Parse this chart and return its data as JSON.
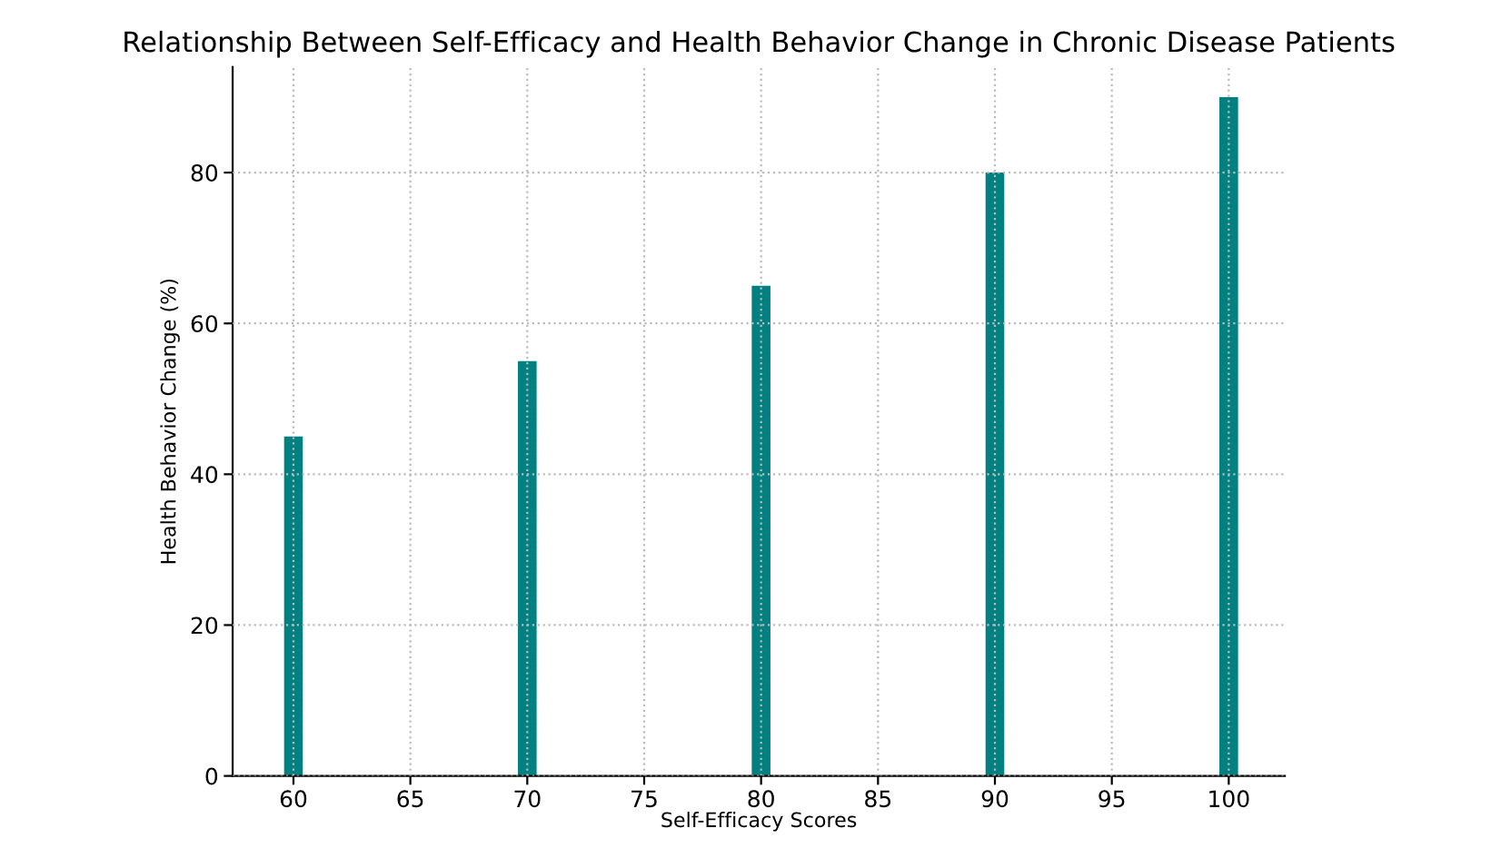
{
  "chart_data": {
    "type": "bar",
    "title": "Relationship Between Self-Efficacy and Health Behavior Change in Chronic Disease Patients",
    "xlabel": "Self-Efficacy Scores",
    "ylabel": "Health Behavior Change (%)",
    "x": [
      60,
      70,
      80,
      90,
      100
    ],
    "values": [
      45,
      55,
      65,
      80,
      90
    ],
    "color": "#008080",
    "xlim": [
      57.4,
      102.4
    ],
    "xticks": [
      60,
      65,
      70,
      75,
      80,
      85,
      90,
      95,
      100
    ],
    "ylim": [
      0,
      94
    ],
    "yticks": [
      0,
      20,
      40,
      60,
      80
    ],
    "grid": true,
    "line_style": "dotted"
  }
}
